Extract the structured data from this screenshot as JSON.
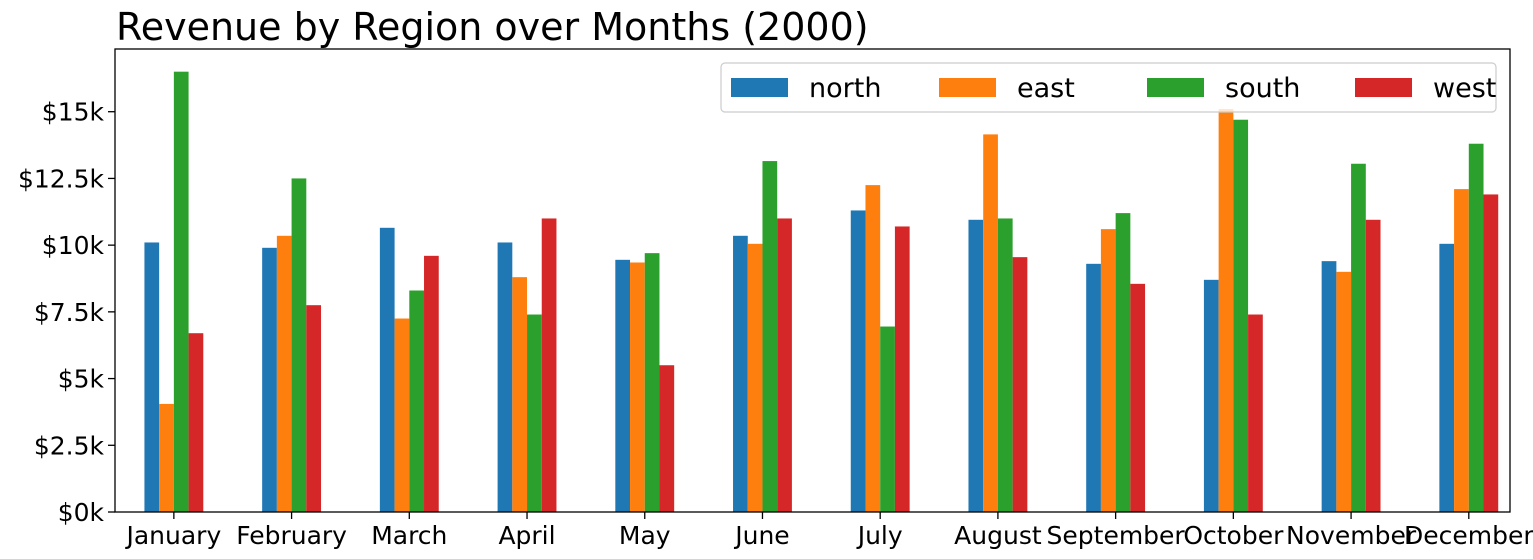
{
  "chart_data": {
    "type": "bar",
    "title": "Revenue by Region over Months (2000)",
    "xlabel": "",
    "ylabel": "",
    "categories": [
      "January",
      "February",
      "March",
      "April",
      "May",
      "June",
      "July",
      "August",
      "September",
      "October",
      "November",
      "December"
    ],
    "series": [
      {
        "name": "north",
        "color": "#1f77b4",
        "values": [
          10100,
          9900,
          10650,
          10100,
          9450,
          10350,
          11300,
          10950,
          9300,
          8700,
          9400,
          10050
        ]
      },
      {
        "name": "east",
        "color": "#ff7f0e",
        "values": [
          4050,
          10350,
          7250,
          8800,
          9350,
          10050,
          12250,
          14150,
          10600,
          15100,
          9000,
          12100
        ]
      },
      {
        "name": "south",
        "color": "#2ca02c",
        "values": [
          16500,
          12500,
          8300,
          7400,
          9700,
          13150,
          6950,
          11000,
          11200,
          14700,
          13050,
          13800
        ]
      },
      {
        "name": "west",
        "color": "#d62728",
        "values": [
          6700,
          7750,
          9600,
          11000,
          5500,
          11000,
          10700,
          9550,
          8550,
          7400,
          10950,
          11900
        ]
      }
    ],
    "ylim": [
      0,
      17350
    ],
    "yticks": [
      0,
      2500,
      5000,
      7500,
      10000,
      12500,
      15000
    ],
    "ytick_labels": [
      "$0k",
      "$2.5k",
      "$5k",
      "$7.5k",
      "$10k",
      "$12.5k",
      "$15k"
    ],
    "grid": false,
    "legend": {
      "placement": "top-right",
      "ncol": 4
    }
  }
}
